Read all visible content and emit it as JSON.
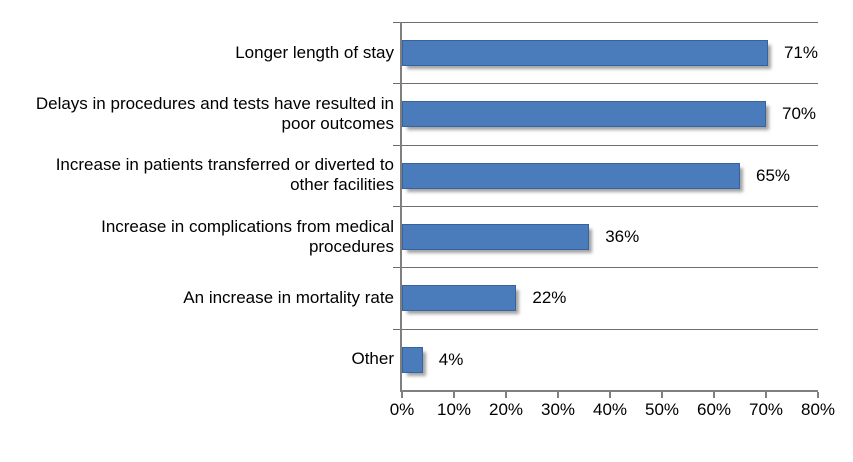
{
  "chart_data": {
    "type": "bar",
    "orientation": "horizontal",
    "title": "",
    "categories": [
      "Longer length of stay",
      "Delays in procedures and tests have resulted in poor outcomes",
      "Increase in patients transferred or diverted to other facilities",
      "Increase in complications from medical procedures",
      "An increase in mortality rate",
      "Other"
    ],
    "category_labels": [
      "Longer length of stay",
      "Delays in procedures and tests have resulted in\npoor outcomes",
      "Increase in patients transferred or diverted to\nother facilities",
      "Increase in complications from medical\nprocedures",
      "An increase in mortality rate",
      "Other"
    ],
    "values": [
      71,
      70,
      65,
      36,
      22,
      4
    ],
    "value_labels": [
      "71%",
      "70%",
      "65%",
      "36%",
      "22%",
      "4%"
    ],
    "xlabel": "",
    "ylabel": "",
    "xlim": [
      0,
      80
    ],
    "x_ticks": [
      "0%",
      "10%",
      "20%",
      "30%",
      "40%",
      "50%",
      "60%",
      "70%",
      "80%"
    ],
    "grid": "horizontal category separators",
    "legend": "none",
    "data_labels": "outside end",
    "colors": {
      "bar": "#4A7CBB",
      "bar_border": "#36629E",
      "axis": "#7f7f7f",
      "gridline": "#6e6e6e",
      "text": "#000000",
      "background": "#ffffff"
    }
  }
}
